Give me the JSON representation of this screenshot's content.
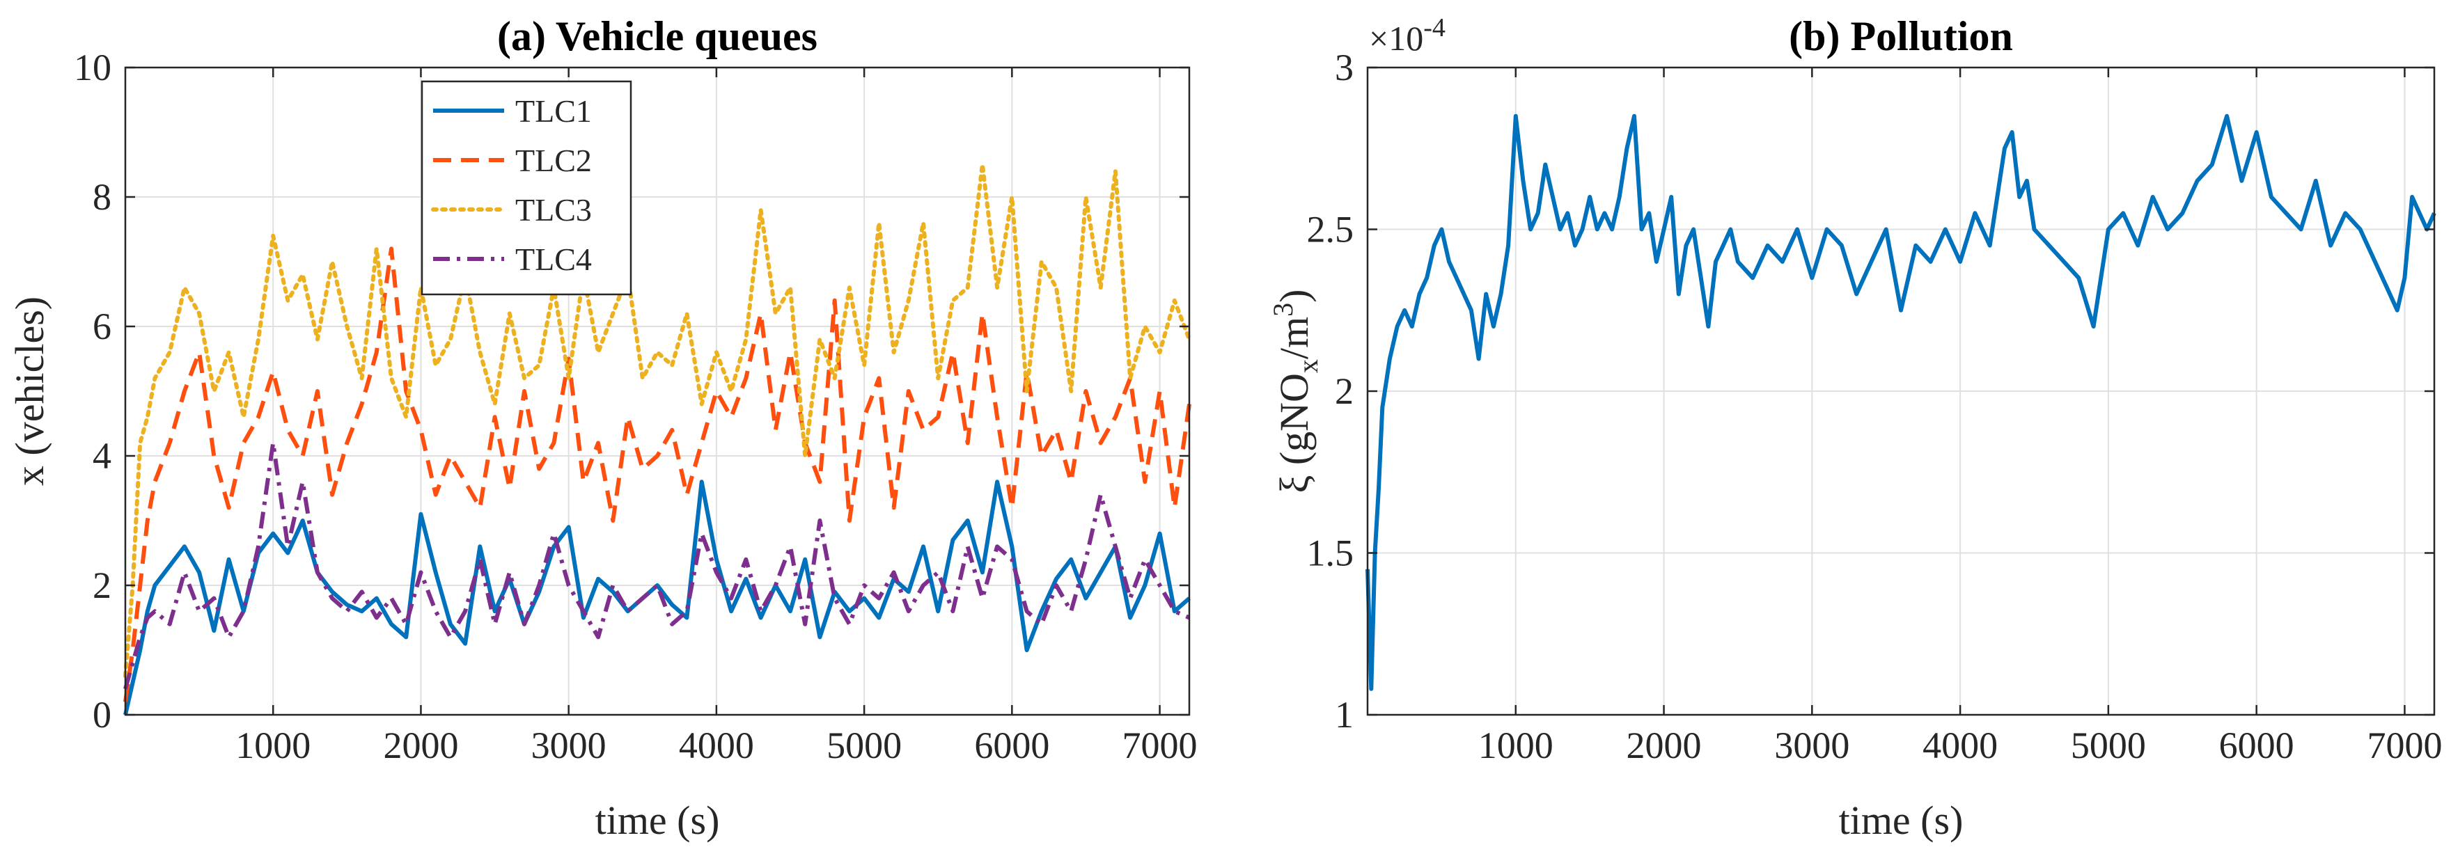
{
  "chart_data": [
    {
      "type": "line",
      "title": "(a) Vehicle queues",
      "xlabel": "time (s)",
      "ylabel": "x (vehicles)",
      "xlim": [
        0,
        7200
      ],
      "ylim": [
        0,
        10
      ],
      "xticks": [
        1000,
        2000,
        3000,
        4000,
        5000,
        6000,
        7000
      ],
      "xtick_labels": [
        "1000",
        "2000",
        "3000",
        "4000",
        "5000",
        "6000",
        "7000"
      ],
      "yticks": [
        0,
        2,
        4,
        6,
        8,
        10
      ],
      "ytick_labels": [
        "0",
        "2",
        "4",
        "6",
        "8",
        "10"
      ],
      "grid": true,
      "legend_position": "top-center",
      "series": [
        {
          "name": "TLC1",
          "color": "#0072BD",
          "style": "solid",
          "x": [
            0,
            50,
            100,
            150,
            200,
            300,
            400,
            500,
            600,
            700,
            800,
            900,
            1000,
            1100,
            1200,
            1300,
            1400,
            1500,
            1600,
            1700,
            1800,
            1900,
            2000,
            2100,
            2200,
            2300,
            2400,
            2500,
            2600,
            2700,
            2800,
            2900,
            3000,
            3100,
            3200,
            3300,
            3400,
            3500,
            3600,
            3700,
            3800,
            3900,
            4000,
            4100,
            4200,
            4300,
            4400,
            4500,
            4600,
            4700,
            4800,
            4900,
            5000,
            5100,
            5200,
            5300,
            5400,
            5500,
            5600,
            5700,
            5800,
            5900,
            6000,
            6100,
            6200,
            6300,
            6400,
            6500,
            6600,
            6700,
            6800,
            6900,
            7000,
            7100,
            7200
          ],
          "values": [
            0,
            0.5,
            1.0,
            1.6,
            2.0,
            2.3,
            2.6,
            2.2,
            1.3,
            2.4,
            1.6,
            2.5,
            2.8,
            2.5,
            3.0,
            2.2,
            1.9,
            1.7,
            1.6,
            1.8,
            1.4,
            1.2,
            3.1,
            2.2,
            1.4,
            1.1,
            2.6,
            1.6,
            2.1,
            1.4,
            1.9,
            2.6,
            2.9,
            1.5,
            2.1,
            1.9,
            1.6,
            1.8,
            2.0,
            1.7,
            1.5,
            3.6,
            2.4,
            1.6,
            2.1,
            1.5,
            2.0,
            1.6,
            2.4,
            1.2,
            1.9,
            1.6,
            1.8,
            1.5,
            2.1,
            1.9,
            2.6,
            1.6,
            2.7,
            3.0,
            2.2,
            3.6,
            2.6,
            1.0,
            1.6,
            2.1,
            2.4,
            1.8,
            2.2,
            2.6,
            1.5,
            2.0,
            2.8,
            1.6,
            1.8
          ]
        },
        {
          "name": "TLC2",
          "color": "#FF4F0F",
          "style": "dashed",
          "x": [
            0,
            50,
            100,
            150,
            200,
            300,
            400,
            500,
            600,
            700,
            800,
            900,
            1000,
            1100,
            1200,
            1300,
            1400,
            1500,
            1600,
            1700,
            1800,
            1900,
            2000,
            2100,
            2200,
            2300,
            2400,
            2500,
            2600,
            2700,
            2800,
            2900,
            3000,
            3100,
            3200,
            3300,
            3400,
            3500,
            3600,
            3700,
            3800,
            3900,
            4000,
            4100,
            4200,
            4300,
            4400,
            4500,
            4600,
            4700,
            4800,
            4900,
            5000,
            5100,
            5200,
            5300,
            5400,
            5500,
            5600,
            5700,
            5800,
            5900,
            6000,
            6100,
            6200,
            6300,
            6400,
            6500,
            6600,
            6700,
            6800,
            6900,
            7000,
            7100,
            7200
          ],
          "values": [
            0.2,
            1.0,
            2.0,
            3.0,
            3.6,
            4.2,
            5.0,
            5.6,
            4.0,
            3.2,
            4.2,
            4.6,
            5.3,
            4.4,
            4.0,
            5.0,
            3.4,
            4.2,
            4.8,
            5.6,
            7.2,
            5.0,
            4.4,
            3.4,
            4.0,
            3.6,
            3.2,
            4.6,
            3.5,
            5.0,
            3.8,
            4.2,
            5.5,
            3.6,
            4.2,
            3.0,
            4.6,
            3.8,
            4.0,
            4.4,
            3.4,
            4.2,
            5.0,
            4.6,
            5.2,
            6.2,
            4.4,
            5.6,
            4.2,
            3.6,
            6.4,
            3.0,
            4.6,
            5.2,
            3.2,
            5.0,
            4.4,
            4.6,
            5.6,
            4.2,
            6.2,
            4.6,
            3.2,
            5.3,
            4.0,
            4.4,
            3.6,
            5.0,
            4.2,
            4.6,
            5.2,
            3.6,
            5.0,
            3.2,
            4.8
          ]
        },
        {
          "name": "TLC3",
          "color": "#EDB120",
          "style": "dotted",
          "x": [
            0,
            50,
            100,
            150,
            200,
            300,
            400,
            500,
            600,
            700,
            800,
            900,
            1000,
            1100,
            1200,
            1300,
            1400,
            1500,
            1600,
            1700,
            1800,
            1900,
            2000,
            2100,
            2200,
            2300,
            2400,
            2500,
            2600,
            2700,
            2800,
            2900,
            3000,
            3100,
            3200,
            3300,
            3400,
            3500,
            3600,
            3700,
            3800,
            3900,
            4000,
            4100,
            4200,
            4300,
            4400,
            4500,
            4600,
            4700,
            4800,
            4900,
            5000,
            5100,
            5200,
            5300,
            5400,
            5500,
            5600,
            5700,
            5800,
            5900,
            6000,
            6100,
            6200,
            6300,
            6400,
            6500,
            6600,
            6700,
            6800,
            6900,
            7000,
            7100,
            7200
          ],
          "values": [
            0.6,
            2.0,
            4.2,
            4.6,
            5.2,
            5.6,
            6.6,
            6.2,
            5.0,
            5.6,
            4.6,
            5.8,
            7.4,
            6.4,
            6.8,
            5.8,
            7.0,
            6.0,
            5.2,
            7.2,
            5.2,
            4.6,
            6.6,
            5.4,
            5.8,
            6.8,
            5.6,
            4.8,
            6.2,
            5.2,
            5.4,
            6.6,
            5.2,
            6.8,
            5.6,
            6.2,
            6.8,
            5.2,
            5.6,
            5.4,
            6.2,
            4.8,
            5.6,
            5.0,
            5.8,
            7.8,
            6.2,
            6.6,
            4.0,
            5.8,
            5.2,
            6.6,
            5.4,
            7.6,
            5.6,
            6.4,
            7.6,
            5.2,
            6.4,
            6.6,
            8.5,
            6.6,
            8.0,
            5.0,
            7.0,
            6.6,
            5.0,
            8.0,
            6.6,
            8.4,
            5.2,
            6.0,
            5.6,
            6.4,
            5.8
          ]
        },
        {
          "name": "TLC4",
          "color": "#7E2F8E",
          "style": "dashdot",
          "x": [
            0,
            50,
            100,
            150,
            200,
            300,
            400,
            500,
            600,
            700,
            800,
            900,
            1000,
            1100,
            1200,
            1300,
            1400,
            1500,
            1600,
            1700,
            1800,
            1900,
            2000,
            2100,
            2200,
            2300,
            2400,
            2500,
            2600,
            2700,
            2800,
            2900,
            3000,
            3100,
            3200,
            3300,
            3400,
            3500,
            3600,
            3700,
            3800,
            3900,
            4000,
            4100,
            4200,
            4300,
            4400,
            4500,
            4600,
            4700,
            4800,
            4900,
            5000,
            5100,
            5200,
            5300,
            5400,
            5500,
            5600,
            5700,
            5800,
            5900,
            6000,
            6100,
            6200,
            6300,
            6400,
            6500,
            6600,
            6700,
            6800,
            6900,
            7000,
            7100,
            7200
          ],
          "values": [
            0.4,
            0.8,
            1.2,
            1.5,
            1.6,
            1.4,
            2.2,
            1.6,
            1.8,
            1.2,
            1.6,
            2.6,
            4.2,
            2.6,
            3.6,
            2.2,
            1.8,
            1.6,
            1.9,
            1.5,
            1.8,
            1.4,
            2.2,
            1.6,
            1.2,
            1.6,
            2.4,
            1.4,
            2.2,
            1.4,
            2.0,
            2.8,
            2.0,
            1.6,
            1.2,
            2.0,
            1.6,
            1.8,
            2.0,
            1.4,
            1.6,
            2.8,
            2.2,
            1.8,
            2.4,
            1.6,
            2.0,
            2.6,
            1.4,
            3.0,
            1.8,
            1.4,
            2.0,
            1.8,
            2.2,
            1.6,
            2.0,
            2.2,
            1.6,
            2.6,
            1.8,
            2.6,
            2.4,
            1.6,
            1.4,
            2.0,
            1.6,
            2.4,
            3.4,
            2.6,
            1.8,
            2.4,
            2.0,
            1.6,
            1.5
          ]
        }
      ]
    },
    {
      "type": "line",
      "title": "(b) Pollution",
      "xlabel": "time (s)",
      "ylabel_main": "ξ (gNO",
      "ylabel_sub": "x",
      "ylabel_mid": "/m",
      "ylabel_sup": "3",
      "ylabel_end": ")",
      "exponent_base": "×10",
      "exponent_power": "-4",
      "xlim": [
        0,
        7200
      ],
      "ylim": [
        1,
        3
      ],
      "xticks": [
        1000,
        2000,
        3000,
        4000,
        5000,
        6000,
        7000
      ],
      "xtick_labels": [
        "1000",
        "2000",
        "3000",
        "4000",
        "5000",
        "6000",
        "7000"
      ],
      "yticks": [
        1,
        1.5,
        2,
        2.5,
        3
      ],
      "ytick_labels": [
        "1",
        "1.5",
        "2",
        "2.5",
        "3"
      ],
      "grid": true,
      "series": [
        {
          "name": "Pollution",
          "color": "#0072BD",
          "style": "solid",
          "x": [
            0,
            25,
            50,
            75,
            100,
            150,
            200,
            250,
            300,
            350,
            400,
            450,
            500,
            550,
            600,
            650,
            700,
            750,
            800,
            850,
            900,
            950,
            1000,
            1050,
            1100,
            1150,
            1200,
            1250,
            1300,
            1350,
            1400,
            1450,
            1500,
            1550,
            1600,
            1650,
            1700,
            1750,
            1800,
            1850,
            1900,
            1950,
            2000,
            2050,
            2100,
            2150,
            2200,
            2250,
            2300,
            2350,
            2400,
            2450,
            2500,
            2600,
            2700,
            2800,
            2900,
            3000,
            3100,
            3200,
            3300,
            3400,
            3500,
            3600,
            3700,
            3800,
            3900,
            4000,
            4100,
            4200,
            4300,
            4350,
            4400,
            4450,
            4500,
            4600,
            4700,
            4800,
            4900,
            5000,
            5100,
            5200,
            5300,
            5400,
            5500,
            5600,
            5700,
            5800,
            5900,
            6000,
            6100,
            6200,
            6300,
            6400,
            6500,
            6600,
            6700,
            6800,
            6900,
            6950,
            7000,
            7050,
            7100,
            7150,
            7200
          ],
          "values": [
            1.45,
            1.08,
            1.5,
            1.7,
            1.95,
            2.1,
            2.2,
            2.25,
            2.2,
            2.3,
            2.35,
            2.45,
            2.5,
            2.4,
            2.35,
            2.3,
            2.25,
            2.1,
            2.3,
            2.2,
            2.3,
            2.45,
            2.85,
            2.65,
            2.5,
            2.55,
            2.7,
            2.6,
            2.5,
            2.55,
            2.45,
            2.5,
            2.6,
            2.5,
            2.55,
            2.5,
            2.6,
            2.75,
            2.85,
            2.5,
            2.55,
            2.4,
            2.5,
            2.6,
            2.3,
            2.45,
            2.5,
            2.35,
            2.2,
            2.4,
            2.45,
            2.5,
            2.4,
            2.35,
            2.45,
            2.4,
            2.5,
            2.35,
            2.5,
            2.45,
            2.3,
            2.4,
            2.5,
            2.25,
            2.45,
            2.4,
            2.5,
            2.4,
            2.55,
            2.45,
            2.75,
            2.8,
            2.6,
            2.65,
            2.5,
            2.45,
            2.4,
            2.35,
            2.2,
            2.5,
            2.55,
            2.45,
            2.6,
            2.5,
            2.55,
            2.65,
            2.7,
            2.85,
            2.65,
            2.8,
            2.6,
            2.55,
            2.5,
            2.65,
            2.45,
            2.55,
            2.5,
            2.4,
            2.3,
            2.25,
            2.35,
            2.6,
            2.55,
            2.5,
            2.55
          ]
        }
      ]
    }
  ]
}
